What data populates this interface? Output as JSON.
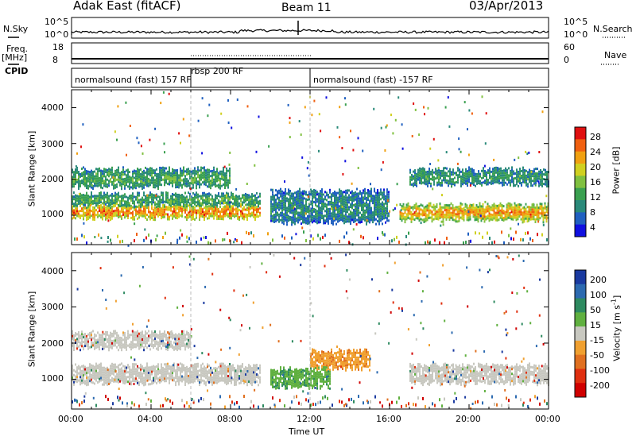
{
  "header": {
    "station": "Adak East (fitACF)",
    "beam": "Beam 11",
    "date": "03/Apr/2013"
  },
  "strips": {
    "nsky_label": "N.Sky",
    "nsearch_label": "N.Search",
    "nsky_ticks": [
      "10^5",
      "10^0"
    ],
    "nsearch_ticks": [
      "10^5",
      "10^0"
    ],
    "freq_label": "Freq.",
    "freq_unit": "[MHz]",
    "freq_ticks": [
      "18",
      "8"
    ],
    "nave_label": "Nave",
    "nave_ticks": [
      "60",
      "0"
    ],
    "cpid_label": "CPID",
    "cpid_segments": [
      {
        "name": "normalsound (fast) 157 RF",
        "start_h": 0,
        "end_h": 6
      },
      {
        "name": "rbsp 200 RF",
        "start_h": 6,
        "end_h": 12
      },
      {
        "name": "normalsound (fast) -157 RF",
        "start_h": 12,
        "end_h": 24
      }
    ]
  },
  "axes": {
    "x_label": "Time UT",
    "x_ticks": [
      "00:00",
      "04:00",
      "08:00",
      "12:00",
      "16:00",
      "20:00",
      "00:00"
    ],
    "y_label": "Slant Range [km]",
    "y_ticks": [
      "1000",
      "2000",
      "3000",
      "4000"
    ]
  },
  "colorbars": {
    "power": {
      "label": "Power [dB]",
      "ticks": [
        "4",
        "8",
        "12",
        "16",
        "20",
        "24",
        "28"
      ],
      "colors": [
        "#1010e0",
        "#2060c0",
        "#2a8a7a",
        "#3aa050",
        "#80c040",
        "#d0d020",
        "#f0a010",
        "#f06010",
        "#e01010"
      ]
    },
    "velocity": {
      "label": "Velocity [m s",
      "label_sup": "-1",
      "label_end": "]",
      "ticks": [
        "200",
        "100",
        "50",
        "15",
        "-15",
        "-50",
        "-100",
        "-200"
      ],
      "colors": [
        "#1a3aa0",
        "#2c6ab0",
        "#2e8a60",
        "#60b040",
        "#c8c8c0",
        "#f0a030",
        "#e07020",
        "#e03010",
        "#d00000"
      ]
    }
  },
  "chart_data": {
    "type": "heatmap",
    "x_range_hours": [
      0,
      24
    ],
    "y_range_km": [
      180,
      4500
    ],
    "panels": [
      {
        "name": "Power",
        "units": "dB",
        "bands_description_values": [
          {
            "time_h": [
              0,
              9.5
            ],
            "range_km": [
              950,
              1300
            ],
            "power_dB": 26
          },
          {
            "time_h": [
              0,
              9.5
            ],
            "range_km": [
              1300,
              1600
            ],
            "power_dB": 12
          },
          {
            "time_h": [
              0,
              8
            ],
            "range_km": [
              1800,
              2300
            ],
            "power_dB": 12
          },
          {
            "time_h": [
              10,
              16
            ],
            "range_km": [
              800,
              1700
            ],
            "power_dB": 8
          },
          {
            "time_h": [
              16.5,
              24
            ],
            "range_km": [
              900,
              1300
            ],
            "power_dB": 24
          },
          {
            "time_h": [
              17,
              24
            ],
            "range_km": [
              1900,
              2300
            ],
            "power_dB": 10
          }
        ]
      },
      {
        "name": "Velocity",
        "units": "m s-1",
        "bands_description_values": [
          {
            "time_h": [
              0,
              9.5
            ],
            "range_km": [
              900,
              1400
            ],
            "velocity": 0
          },
          {
            "time_h": [
              0,
              6
            ],
            "range_km": [
              1900,
              2300
            ],
            "velocity": 0
          },
          {
            "time_h": [
              12,
              15
            ],
            "range_km": [
              1300,
              1800
            ],
            "velocity": -40
          },
          {
            "time_h": [
              10,
              13
            ],
            "range_km": [
              800,
              1300
            ],
            "velocity": 30
          },
          {
            "time_h": [
              17,
              24
            ],
            "range_km": [
              900,
              1400
            ],
            "velocity": 0
          }
        ]
      }
    ]
  }
}
